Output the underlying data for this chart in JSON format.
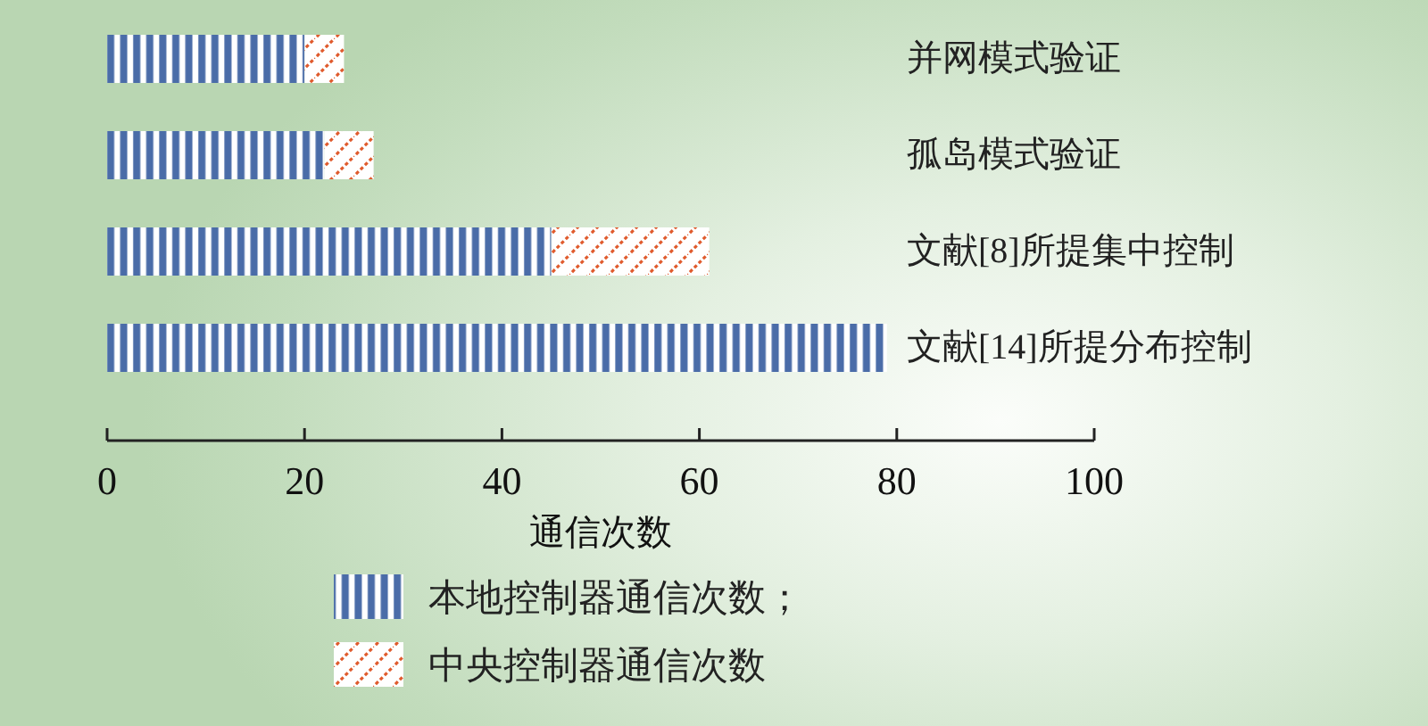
{
  "chart_data": {
    "type": "bar",
    "orientation": "horizontal",
    "stacked": true,
    "categories": [
      "并网模式验证",
      "孤岛模式验证",
      "文献[8]所提集中控制",
      "文献[14]所提分布控制"
    ],
    "series": [
      {
        "name": "本地控制器通信次数；",
        "color": "#4a6ca8",
        "values": [
          20,
          22,
          45,
          79
        ]
      },
      {
        "name": "中央控制器通信次数",
        "color": "#e05a2c",
        "values": [
          4,
          5,
          16,
          0
        ]
      }
    ],
    "xlim": [
      0,
      100
    ],
    "xticks": [
      0,
      20,
      40,
      60,
      80,
      100
    ],
    "xlabel": "通信次数",
    "legend": "bottom"
  }
}
